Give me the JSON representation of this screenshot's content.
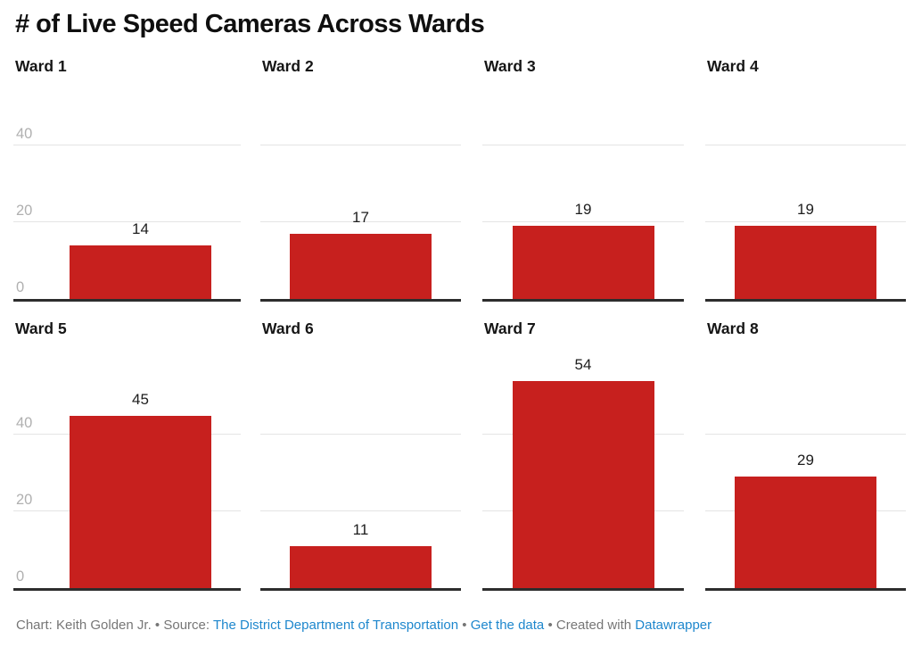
{
  "title": "# of Live Speed Cameras Across Wards",
  "chart_data": {
    "type": "bar",
    "layout": "small-multiples: 2 rows x 4 columns, one bar per panel",
    "categories": [
      "Ward 1",
      "Ward 2",
      "Ward 3",
      "Ward 4",
      "Ward 5",
      "Ward 6",
      "Ward 7",
      "Ward 8"
    ],
    "values": [
      14,
      17,
      19,
      19,
      45,
      11,
      54,
      29
    ],
    "panels": [
      {
        "label": "Ward 1",
        "value": 14
      },
      {
        "label": "Ward 2",
        "value": 17
      },
      {
        "label": "Ward 3",
        "value": 19
      },
      {
        "label": "Ward 4",
        "value": 19
      },
      {
        "label": "Ward 5",
        "value": 45
      },
      {
        "label": "Ward 6",
        "value": 11
      },
      {
        "label": "Ward 7",
        "value": 54
      },
      {
        "label": "Ward 8",
        "value": 29
      }
    ],
    "title": "# of Live Speed Cameras Across Wards",
    "xlabel": "",
    "ylabel": "",
    "y_ticks": [
      40,
      20,
      0
    ],
    "ylim_row1": [
      0,
      52
    ],
    "ylim_row2": [
      0,
      63
    ],
    "grid": "horizontal gridlines at 20 and 40, labels only on leftmost column, dark axis baseline at 0",
    "legend": "none"
  },
  "colors": {
    "bar": "#c7201e",
    "baseline": "#2d2d2d",
    "gridline": "#e4e4e4",
    "tick_text": "#b0b0b0",
    "title_text": "#0f0f0f",
    "footer_text": "#767676",
    "link_blue": "#1e87cd"
  },
  "footer": {
    "chart_credit": "Chart: Keith Golden Jr.",
    "separator": "•",
    "source_label": "Source:",
    "source_link": "The District Department of Transportation",
    "get_data_link": "Get the data",
    "created_with": "Created with",
    "datawrapper_link": "Datawrapper"
  }
}
